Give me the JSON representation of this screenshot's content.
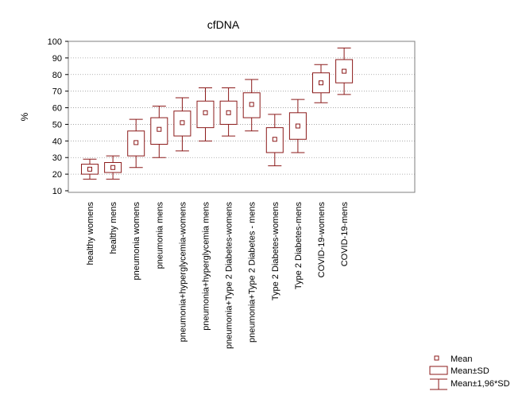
{
  "chart_data": {
    "type": "box",
    "title": "cfDNA",
    "ylabel": "%",
    "xlabel": "",
    "ylim": [
      10,
      100
    ],
    "yticks": [
      10,
      20,
      30,
      40,
      50,
      60,
      70,
      80,
      90,
      100
    ],
    "grid": "horizontal dotted",
    "categories": [
      "healthy womens",
      "healthy mens",
      "pneumonia womens",
      "pneumonia mens",
      "pneumonia+hyperglycemia-womens",
      "pneumonia+hyperglycemia mens",
      "pneumonia+Type 2 Diabetes-womens",
      "pneumonia+Type 2 Diabetes - mens",
      "Type 2 Diabetes-womens",
      "Type 2 Diabetes-mens",
      "COVID-19-womens",
      "COVID-19-mens"
    ],
    "series": [
      {
        "name": "Mean",
        "values": [
          23,
          24,
          39,
          47,
          51,
          57,
          57,
          62,
          41,
          49,
          75,
          82
        ]
      },
      {
        "name": "Mean±SD",
        "low": [
          20,
          21,
          31,
          38,
          43,
          48,
          50,
          54,
          33,
          41,
          69,
          75
        ],
        "high": [
          26,
          27,
          46,
          54,
          58,
          64,
          64,
          69,
          48,
          57,
          81,
          89
        ]
      },
      {
        "name": "Mean±1,96*SD",
        "low": [
          17,
          17,
          24,
          30,
          34,
          40,
          43,
          46,
          25,
          33,
          63,
          68
        ],
        "high": [
          29,
          31,
          53,
          61,
          66,
          72,
          72,
          77,
          56,
          65,
          86,
          96
        ]
      }
    ],
    "legend": {
      "position": "bottom-right",
      "items": [
        "Mean",
        "Mean±SD",
        "Mean±1,96*SD"
      ]
    },
    "color": "#8b1a1a"
  }
}
